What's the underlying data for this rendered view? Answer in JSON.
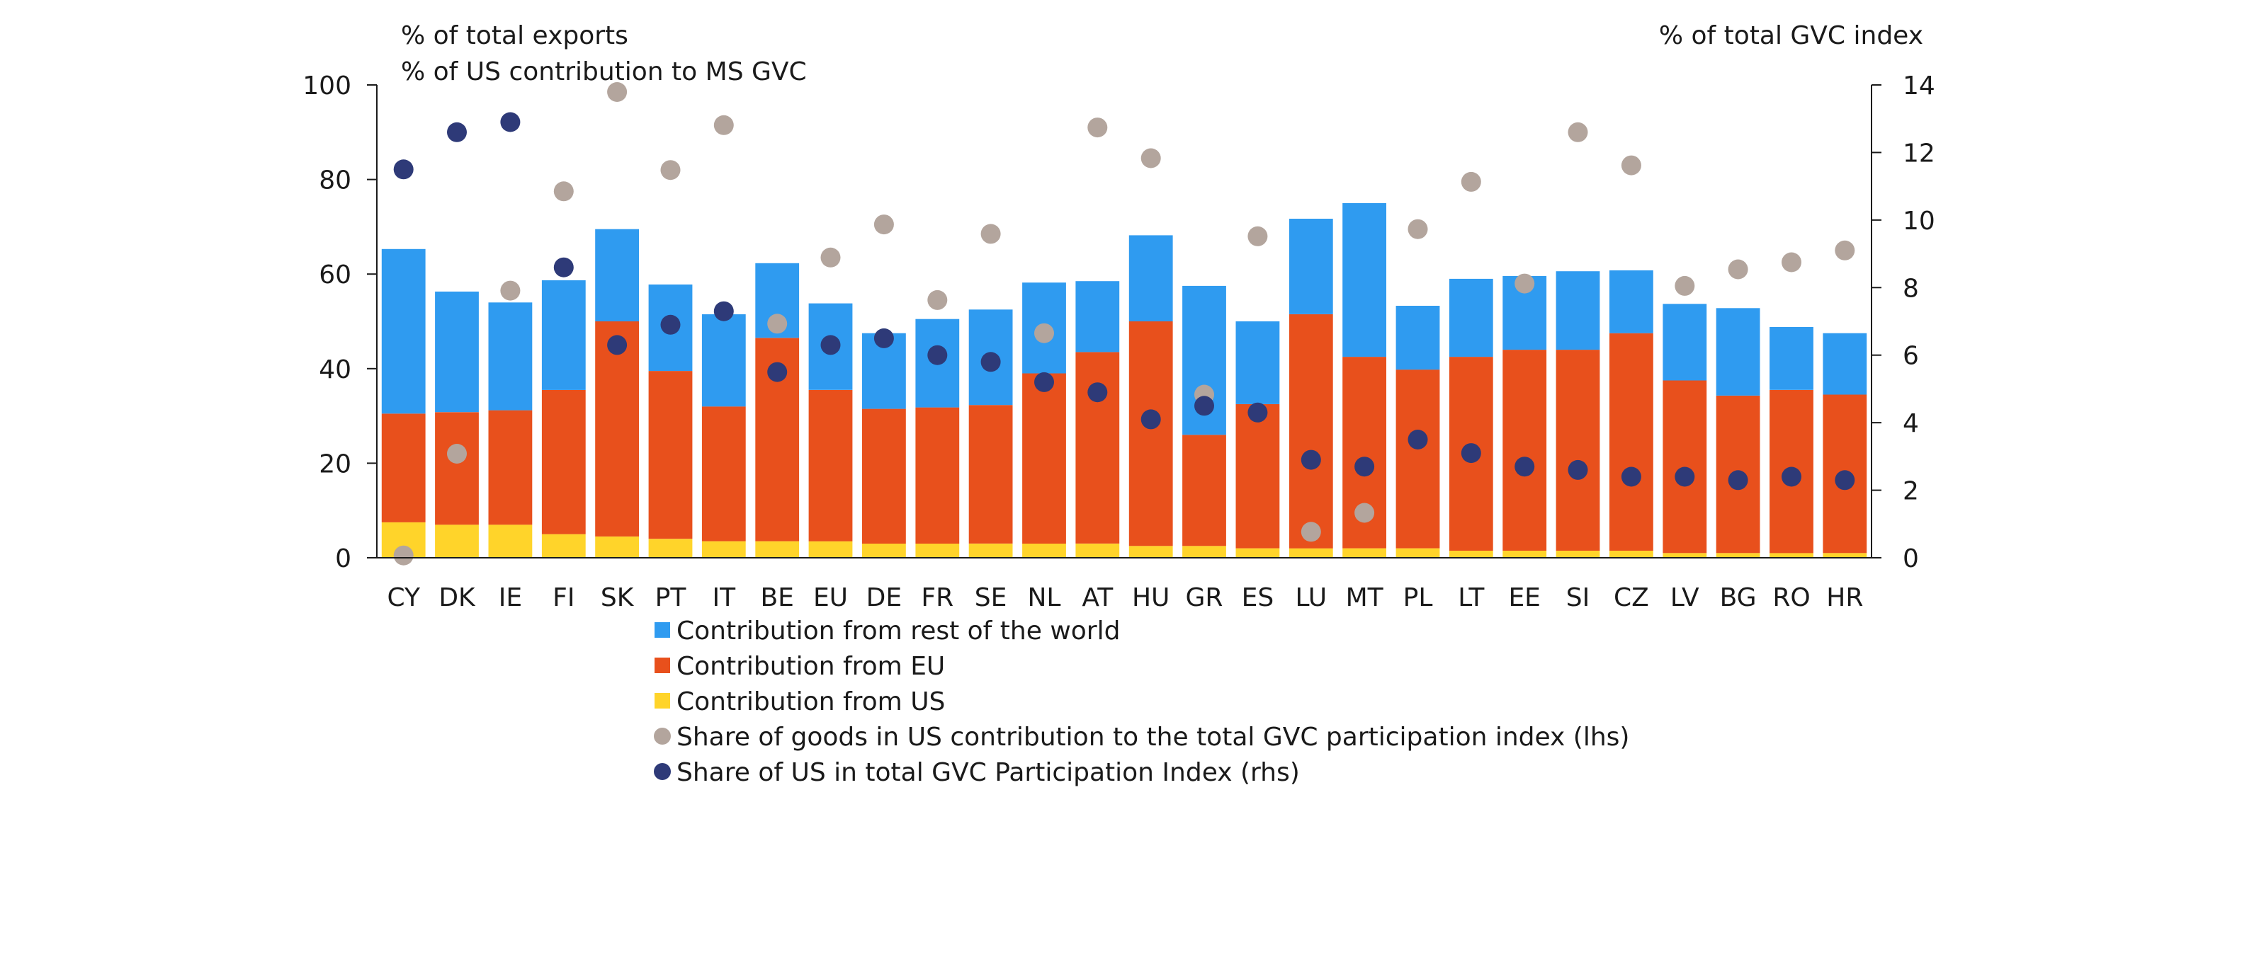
{
  "chart_data": {
    "type": "bar",
    "stacked": true,
    "left_axis_title_1": "% of total exports",
    "left_axis_title_2": "% of US contribution to MS GVC",
    "right_axis_title": "% of total GVC index",
    "ylim": [
      0,
      100
    ],
    "yticks": [
      0,
      20,
      40,
      60,
      80,
      100
    ],
    "y2lim": [
      0,
      14
    ],
    "y2ticks": [
      0,
      2,
      4,
      6,
      8,
      10,
      12,
      14
    ],
    "grid": false,
    "legend_position": "bottom",
    "categories": [
      "CY",
      "DK",
      "IE",
      "FI",
      "SK",
      "PT",
      "IT",
      "BE",
      "EU",
      "DE",
      "FR",
      "SE",
      "NL",
      "AT",
      "HU",
      "GR",
      "ES",
      "LU",
      "MT",
      "PL",
      "LT",
      "EE",
      "SI",
      "CZ",
      "LV",
      "BG",
      "RO",
      "HR"
    ],
    "series": [
      {
        "name": "Contribution from US",
        "kind": "bar",
        "color": "#ffd42a",
        "values": [
          7.5,
          7.0,
          7.0,
          5.0,
          4.5,
          4.0,
          3.5,
          3.5,
          3.5,
          3.0,
          3.0,
          3.0,
          3.0,
          3.0,
          2.5,
          2.5,
          2.0,
          2.0,
          2.0,
          2.0,
          1.5,
          1.5,
          1.5,
          1.5,
          1.0,
          1.0,
          1.0,
          1.0
        ]
      },
      {
        "name": "Contribution from EU",
        "kind": "bar",
        "color": "#e8501c",
        "values": [
          23.0,
          23.8,
          24.2,
          30.5,
          45.5,
          35.5,
          28.5,
          43.0,
          32.0,
          28.5,
          28.8,
          29.3,
          36.0,
          40.5,
          47.5,
          23.5,
          30.5,
          49.5,
          40.5,
          37.8,
          41.0,
          42.5,
          42.5,
          46.0,
          36.5,
          33.3,
          34.5,
          33.5
        ]
      },
      {
        "name": "Contribution from rest of the world",
        "kind": "bar",
        "color": "#2f9bf0",
        "values": [
          34.8,
          25.5,
          22.8,
          23.2,
          19.5,
          18.3,
          19.5,
          15.8,
          18.3,
          16.0,
          18.7,
          20.2,
          19.2,
          15.0,
          18.2,
          31.5,
          17.5,
          20.2,
          32.5,
          13.5,
          16.5,
          15.6,
          16.6,
          13.3,
          16.2,
          18.5,
          13.3,
          13.0
        ]
      },
      {
        "name": "Share of goods in US contribution to the total GVC participation index (lhs)",
        "kind": "dot",
        "axis": "left",
        "color": "#b3a59d",
        "values": [
          0.5,
          22.0,
          56.5,
          77.5,
          98.5,
          82.0,
          91.5,
          49.5,
          63.5,
          70.5,
          54.5,
          68.5,
          47.5,
          91.0,
          84.5,
          34.5,
          68.0,
          5.5,
          9.5,
          69.5,
          79.5,
          58.0,
          90.0,
          83.0,
          57.5,
          61.0,
          62.5,
          65.0
        ]
      },
      {
        "name": "Share of US in total GVC Participation Index (rhs)",
        "kind": "dot",
        "axis": "right",
        "color": "#2e3a78",
        "values": [
          11.5,
          12.6,
          12.9,
          8.6,
          6.3,
          6.9,
          7.3,
          5.5,
          6.3,
          6.5,
          6.0,
          5.8,
          5.2,
          4.9,
          4.1,
          4.5,
          4.3,
          2.9,
          2.7,
          3.5,
          3.1,
          2.7,
          2.6,
          2.4,
          2.4,
          2.3,
          2.4,
          2.3
        ]
      }
    ]
  }
}
